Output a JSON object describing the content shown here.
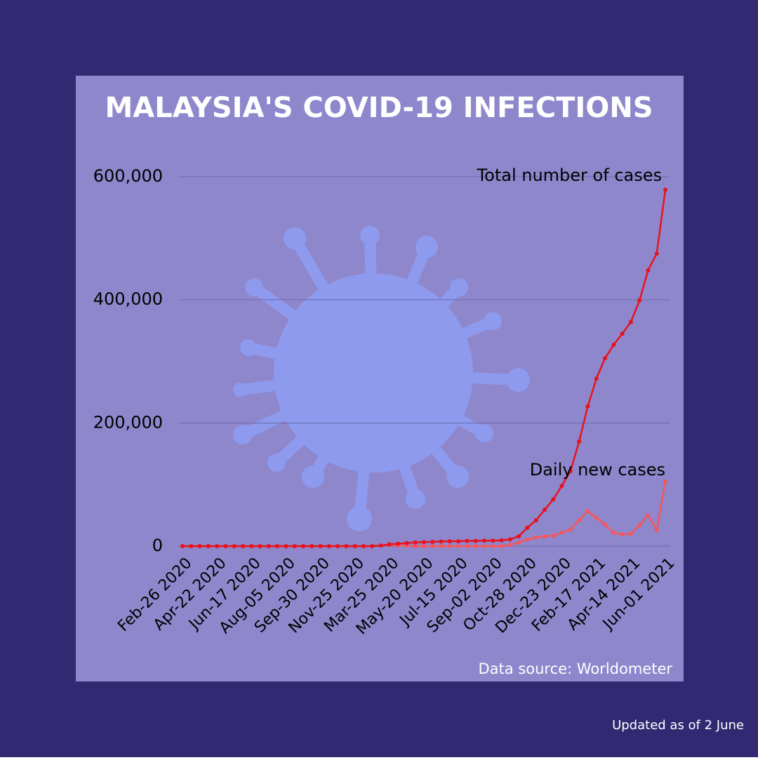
{
  "chart_data": {
    "type": "line",
    "title": "MALAYSIA'S COVID-19 INFECTIONS",
    "categories": [
      "Feb-26 2020",
      null,
      null,
      null,
      "Apr-22 2020",
      null,
      null,
      null,
      "Jun-17 2020",
      null,
      null,
      null,
      "Aug-05 2020",
      null,
      null,
      null,
      "Sep-30 2020",
      null,
      null,
      null,
      "Nov-25 2020",
      null,
      null,
      null,
      "Mar-25 2020",
      null,
      null,
      null,
      "May-20 2020",
      null,
      null,
      null,
      "Jul-15 2020",
      null,
      null,
      null,
      "Sep-02 2020",
      null,
      null,
      null,
      "Oct-28 2020",
      null,
      null,
      null,
      "Dec-23 2020",
      null,
      null,
      null,
      "Feb-17 2021",
      null,
      null,
      null,
      "Apr-14 2021",
      null,
      null,
      null,
      "Jun-01 2021"
    ],
    "series": [
      {
        "name": "Total number of cases",
        "color": "#e8121e",
        "values": [
          0,
          0,
          0,
          0,
          0,
          0,
          0,
          0,
          0,
          0,
          0,
          0,
          0,
          0,
          0,
          0,
          0,
          0,
          0,
          0,
          0,
          0,
          0,
          1000,
          3000,
          4000,
          5000,
          6000,
          6500,
          7000,
          7500,
          8000,
          8000,
          8500,
          8500,
          9000,
          9000,
          9500,
          11000,
          16000,
          30000,
          42000,
          59000,
          76000,
          98000,
          122000,
          170000,
          227000,
          272000,
          305000,
          327000,
          345000,
          364000,
          399000,
          448000,
          475000,
          579000
        ]
      },
      {
        "name": "Daily new cases",
        "color": "#f4575e",
        "values": [
          0,
          0,
          0,
          0,
          0,
          0,
          0,
          0,
          0,
          0,
          0,
          0,
          0,
          0,
          0,
          0,
          0,
          0,
          0,
          0,
          0,
          0,
          0,
          1000,
          2000,
          1000,
          500,
          0,
          0,
          0,
          0,
          0,
          0,
          0,
          0,
          0,
          0,
          0,
          2000,
          6000,
          11000,
          14000,
          16000,
          17000,
          22000,
          27000,
          42000,
          57000,
          46000,
          35000,
          22000,
          19000,
          20000,
          34000,
          50000,
          26000,
          105000
        ]
      }
    ],
    "ylim": [
      0,
      600000
    ],
    "yticks": [
      0,
      {
        "value": 200000,
        "label": "200,000"
      },
      {
        "value": 400000,
        "label": "400,000"
      },
      {
        "value": 600000,
        "label": "600,000"
      }
    ],
    "grid": true,
    "source": "Data source: Worldometer",
    "updated": "Updated as of 2 June"
  }
}
